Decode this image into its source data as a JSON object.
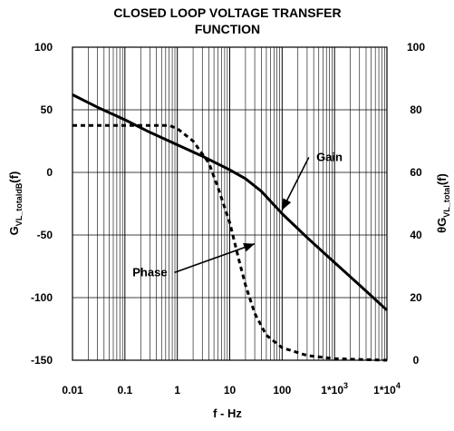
{
  "chart_data": {
    "type": "line",
    "title": [
      "CLOSED LOOP VOLTAGE TRANSFER",
      "FUNCTION"
    ],
    "xlabel": "f - Hz",
    "xscale": "log",
    "xlim": [
      0.01,
      10000
    ],
    "x_ticks": [
      {
        "v": 0.01,
        "label": "0.01"
      },
      {
        "v": 0.1,
        "label": "0.1"
      },
      {
        "v": 1,
        "label": "1"
      },
      {
        "v": 10,
        "label": "10"
      },
      {
        "v": 100,
        "label": "100"
      },
      {
        "v": 1000,
        "label": "1*10",
        "sup": "3"
      },
      {
        "v": 10000,
        "label": "1*10",
        "sup": "4"
      }
    ],
    "ylabel_left": {
      "main": "G",
      "sub": "VL_totaldB",
      "tail": "(f)"
    },
    "ylim_left": [
      -150,
      100
    ],
    "yticks_left": [
      "100",
      "50",
      "0",
      "-50",
      "-100",
      "-150"
    ],
    "ylabel_right": {
      "main": "θG",
      "sub": "VL_total",
      "tail": "(f)"
    },
    "ylim_right": [
      0,
      100
    ],
    "yticks_right": [
      "100",
      "80",
      "60",
      "40",
      "20",
      "0"
    ],
    "grid": true,
    "series": [
      {
        "name": "Gain",
        "axis": "left",
        "style": "solid",
        "x": [
          0.01,
          0.03,
          0.1,
          0.3,
          1,
          3,
          10,
          20,
          40,
          100,
          300,
          1000,
          3000,
          10000
        ],
        "y": [
          62,
          52,
          42,
          32,
          22,
          13,
          2,
          -5,
          -15,
          -33,
          -52,
          -72,
          -90,
          -110
        ]
      },
      {
        "name": "Phase",
        "axis": "right",
        "style": "dashed",
        "x": [
          0.01,
          0.1,
          0.7,
          1,
          2,
          4,
          6,
          10,
          15,
          20,
          30,
          50,
          100,
          300,
          1000,
          10000
        ],
        "y": [
          75,
          75,
          75,
          74,
          70,
          63,
          55,
          44,
          32,
          24,
          15,
          8,
          4,
          1.5,
          0.5,
          0
        ]
      }
    ],
    "annotations": [
      {
        "text": "Gain",
        "x": 800,
        "y": 12,
        "target_x": 100,
        "target_y": -30
      },
      {
        "text": "Phase",
        "x": 0.3,
        "y": -80,
        "target_x": 30,
        "target_y": -57
      }
    ]
  }
}
